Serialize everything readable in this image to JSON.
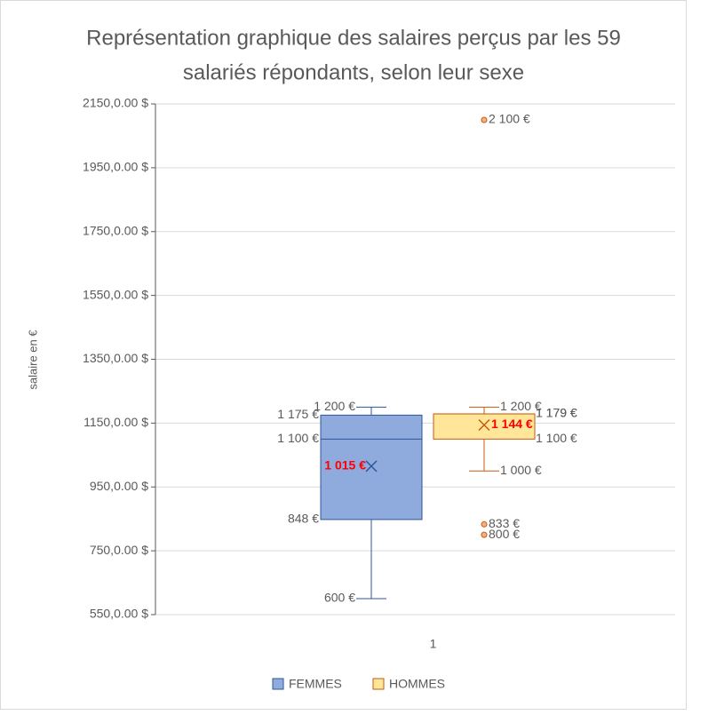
{
  "chart_data": {
    "type": "box",
    "title": [
      "Représentation graphique des salaires perçus par les 59",
      "salariés répondants, selon leur sexe"
    ],
    "y_label": "salaire en €",
    "categories": [
      "1"
    ],
    "ylim": [
      550,
      2150
    ],
    "yticks": [
      {
        "value": 550,
        "label": "550,0.00 $"
      },
      {
        "value": 750,
        "label": "750,0.00 $"
      },
      {
        "value": 950,
        "label": "950,0.00 $"
      },
      {
        "value": 1150,
        "label": "1150,0.00 $"
      },
      {
        "value": 1350,
        "label": "1350,0.00 $"
      },
      {
        "value": 1550,
        "label": "1550,0.00 $"
      },
      {
        "value": 1750,
        "label": "1750,0.00 $"
      },
      {
        "value": 1950,
        "label": "1950,0.00 $"
      },
      {
        "value": 2150,
        "label": "2150,0.00 $"
      }
    ],
    "grid": true,
    "legend": "bottom",
    "series": [
      {
        "name": "FEMMES",
        "color": "#8faadc",
        "stroke": "#2f5597",
        "values": [
          600,
          848,
          1100,
          1175,
          1200
        ],
        "value_labels": [
          "600 €",
          "848 €",
          "1 100 €",
          "1 175 €",
          "1 200 €"
        ],
        "mean": 1015,
        "mean_label": "1 015 €",
        "outliers": [],
        "outlier_labels": []
      },
      {
        "name": "HOMMES",
        "color": "#ffe699",
        "stroke": "#c55a11",
        "values": [
          1000,
          1100,
          1179,
          1179,
          1200
        ],
        "value_labels": [
          "1 000 €",
          "1 100 €",
          "1 179 €",
          "1 179 €",
          "1 200 €"
        ],
        "mean": 1144,
        "mean_label": "1 144 €",
        "outliers": [
          2100,
          833,
          800
        ],
        "outlier_labels": [
          "2 100 €",
          "833 €",
          "800 €"
        ]
      }
    ]
  }
}
